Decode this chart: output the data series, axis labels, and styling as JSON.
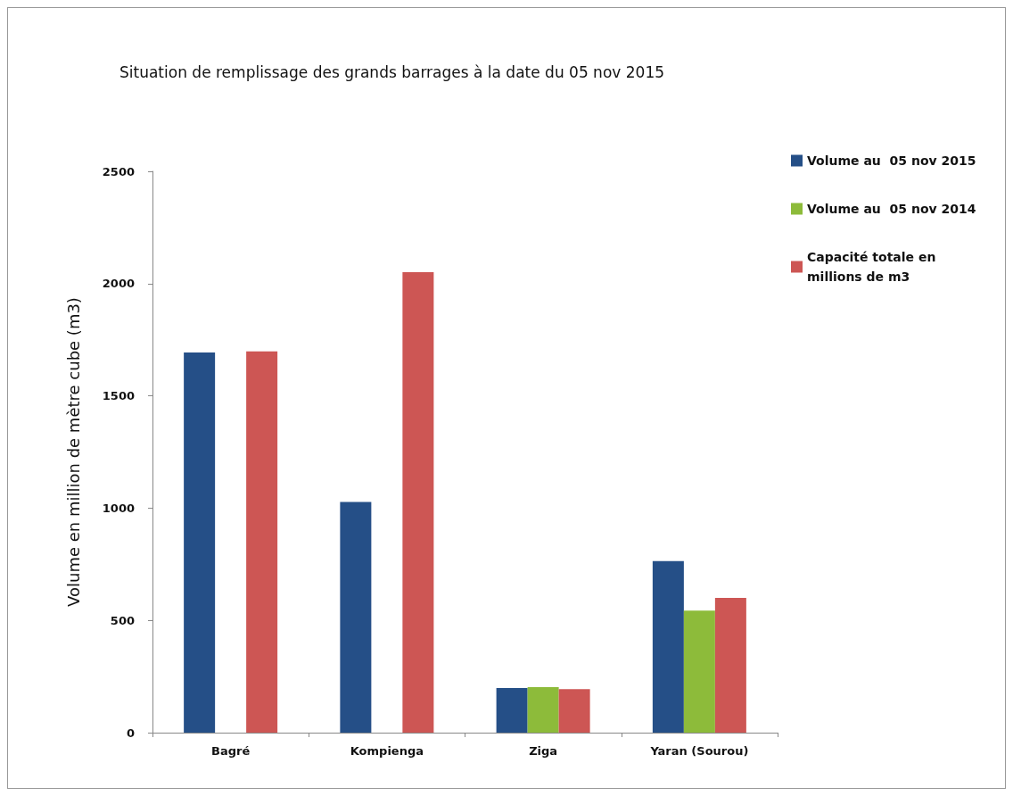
{
  "chart_data": {
    "type": "bar",
    "title": "Situation de remplissage des grands barrages à la date du 05 nov 2015",
    "ylabel": "Volume en million de mètre cube (m3)",
    "categories": [
      "Bagré",
      "Kompienga",
      "Ziga",
      "Yaran (Sourou)"
    ],
    "series": [
      {
        "name": "Volume au  05 nov 2015",
        "color": "#254f87",
        "values": [
          1693,
          1027,
          199,
          764
        ]
      },
      {
        "name": "Volume au  05 nov 2014",
        "color": "#8dbb3a",
        "values": [
          null,
          null,
          203,
          544
        ]
      },
      {
        "name": "Capacité totale en millions de m3",
        "color": "#cd5654",
        "values": [
          1698,
          2051,
          194,
          600
        ]
      }
    ],
    "ylim": [
      0,
      2500
    ],
    "yticks": [
      0,
      500,
      1000,
      1500,
      2000,
      2500
    ],
    "grid": false,
    "legend": "right"
  }
}
